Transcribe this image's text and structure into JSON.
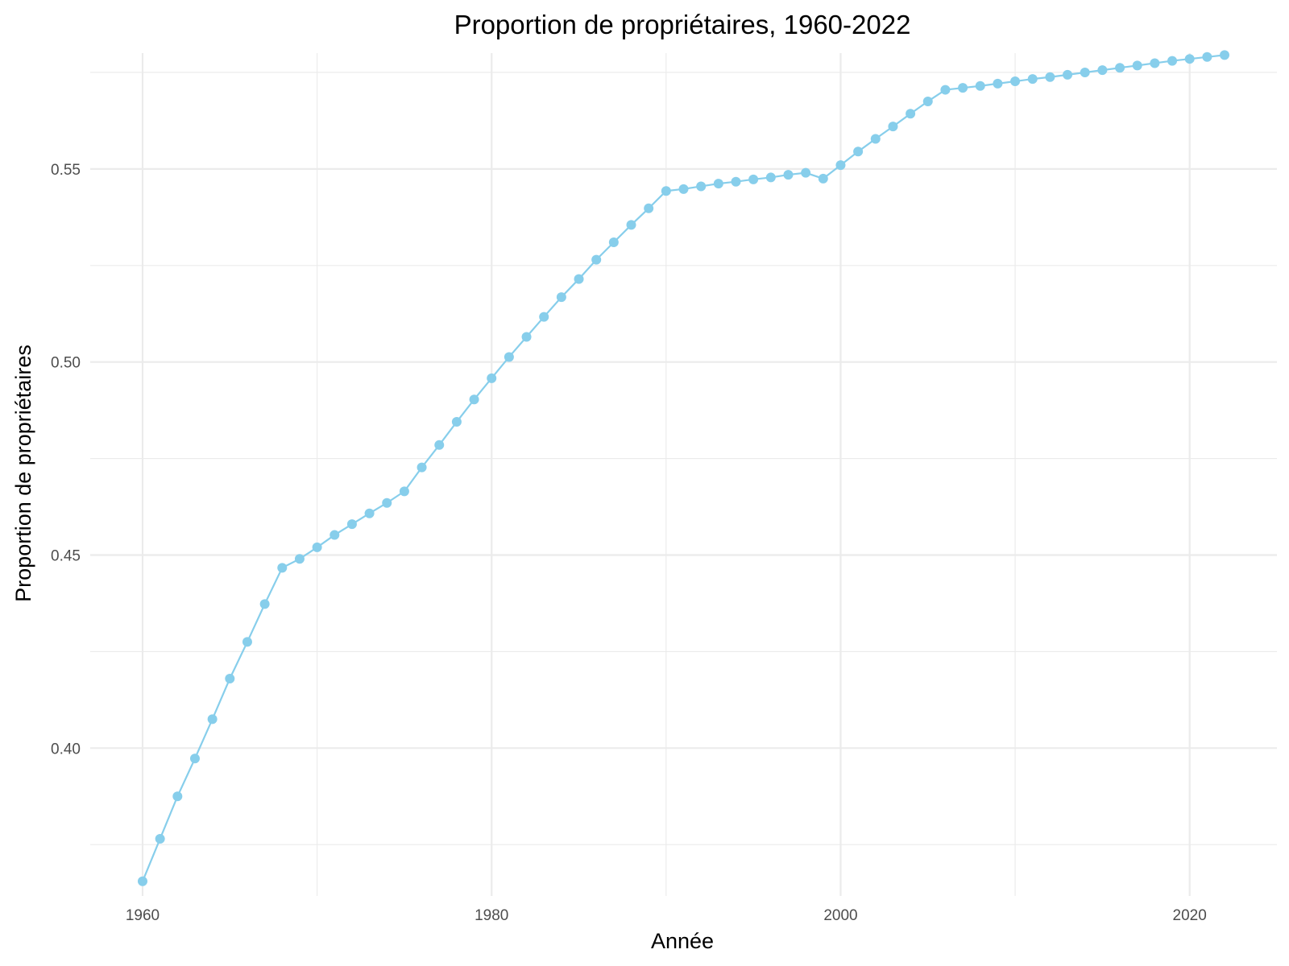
{
  "chart_data": {
    "type": "line",
    "title": "Proportion de propriétaires, 1960-2022",
    "xlabel": "Année",
    "ylabel": "Proportion de propriétaires",
    "xlim": [
      1957,
      2025
    ],
    "ylim": [
      0.3617,
      0.58
    ],
    "x_major_ticks": [
      1960,
      1980,
      2000,
      2020
    ],
    "x_tick_labels": [
      "1960",
      "1980",
      "2000",
      "2020"
    ],
    "x_minor_ticks": [
      1970,
      1990,
      2010
    ],
    "y_major_ticks": [
      0.4,
      0.45,
      0.5,
      0.55
    ],
    "y_tick_labels": [
      "0.40",
      "0.45",
      "0.50",
      "0.55"
    ],
    "y_minor_ticks": [
      0.375,
      0.425,
      0.475,
      0.525,
      0.575
    ],
    "grid": true,
    "legend": "none",
    "color": "#87ceeb",
    "series": [
      {
        "x": [
          1960,
          1961,
          1962,
          1963,
          1964,
          1965,
          1966,
          1967,
          1968,
          1969,
          1970,
          1971,
          1972,
          1973,
          1974,
          1975,
          1976,
          1977,
          1978,
          1979,
          1980,
          1981,
          1982,
          1983,
          1984,
          1985,
          1986,
          1987,
          1988,
          1989,
          1990,
          1991,
          1992,
          1993,
          1994,
          1995,
          1996,
          1997,
          1998,
          1999,
          2000,
          2001,
          2002,
          2003,
          2004,
          2005,
          2006,
          2007,
          2008,
          2009,
          2010,
          2011,
          2012,
          2013,
          2014,
          2015,
          2016,
          2017,
          2018,
          2019,
          2020,
          2021,
          2022
        ],
        "values": [
          0.3655,
          0.3765,
          0.3875,
          0.3973,
          0.4075,
          0.418,
          0.4275,
          0.4373,
          0.4467,
          0.449,
          0.452,
          0.4552,
          0.458,
          0.4608,
          0.4635,
          0.4665,
          0.4727,
          0.4785,
          0.4845,
          0.4903,
          0.4958,
          0.5013,
          0.5065,
          0.5117,
          0.5168,
          0.5215,
          0.5265,
          0.531,
          0.5355,
          0.5398,
          0.5443,
          0.5448,
          0.5455,
          0.5462,
          0.5467,
          0.5473,
          0.5478,
          0.5485,
          0.549,
          0.5475,
          0.551,
          0.5545,
          0.5578,
          0.561,
          0.5643,
          0.5675,
          0.5705,
          0.571,
          0.5715,
          0.5721,
          0.5727,
          0.5733,
          0.5738,
          0.5744,
          0.575,
          0.5756,
          0.5762,
          0.5768,
          0.5774,
          0.578,
          0.5785,
          0.579,
          0.5795
        ]
      }
    ]
  }
}
